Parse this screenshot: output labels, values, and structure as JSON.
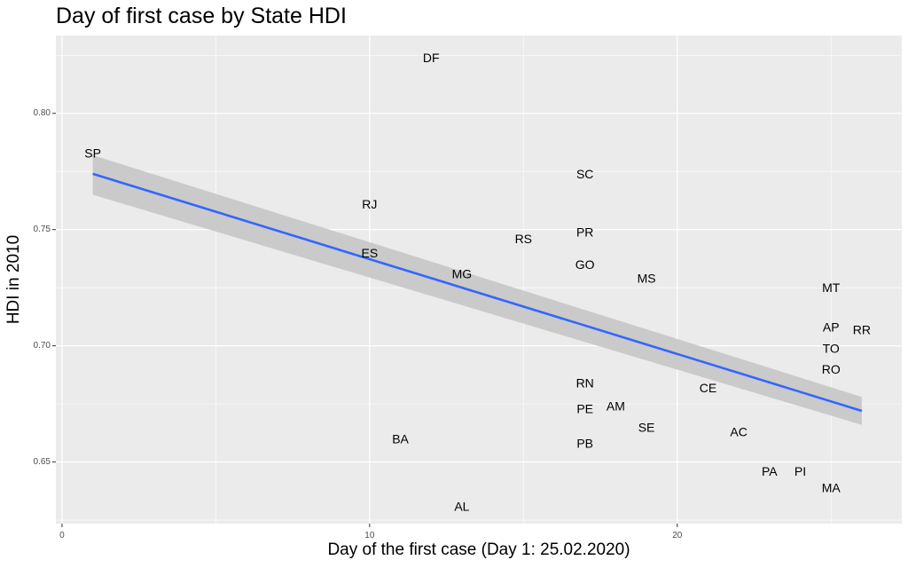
{
  "chart_data": {
    "type": "scatter",
    "title": "Day of first case by State HDI",
    "xlabel": "Day of the first case (Day 1: 25.02.2020)",
    "ylabel": "HDI in 2010",
    "xlim": [
      -0.2,
      27.3
    ],
    "ylim": [
      0.6235,
      0.8335
    ],
    "x_ticks": [
      0,
      10,
      20
    ],
    "y_ticks": [
      0.65,
      0.7,
      0.75,
      0.8
    ],
    "x_tick_labels": [
      "0",
      "10",
      "20"
    ],
    "y_tick_labels": [
      "0.65",
      "0.70",
      "0.75",
      "0.80"
    ],
    "grid": true,
    "points": [
      {
        "label": "SP",
        "x": 1,
        "y": 0.783
      },
      {
        "label": "DF",
        "x": 12,
        "y": 0.824
      },
      {
        "label": "RJ",
        "x": 10,
        "y": 0.761
      },
      {
        "label": "ES",
        "x": 10,
        "y": 0.74
      },
      {
        "label": "RS",
        "x": 15,
        "y": 0.746
      },
      {
        "label": "MG",
        "x": 13,
        "y": 0.731
      },
      {
        "label": "SC",
        "x": 17,
        "y": 0.774
      },
      {
        "label": "PR",
        "x": 17,
        "y": 0.749
      },
      {
        "label": "GO",
        "x": 17,
        "y": 0.735
      },
      {
        "label": "MS",
        "x": 19,
        "y": 0.729
      },
      {
        "label": "MT",
        "x": 25,
        "y": 0.725
      },
      {
        "label": "AP",
        "x": 25,
        "y": 0.708
      },
      {
        "label": "RR",
        "x": 26,
        "y": 0.707
      },
      {
        "label": "TO",
        "x": 25,
        "y": 0.699
      },
      {
        "label": "RO",
        "x": 25,
        "y": 0.69
      },
      {
        "label": "RN",
        "x": 17,
        "y": 0.684
      },
      {
        "label": "CE",
        "x": 21,
        "y": 0.682
      },
      {
        "label": "PE",
        "x": 17,
        "y": 0.673
      },
      {
        "label": "AM",
        "x": 18,
        "y": 0.674
      },
      {
        "label": "SE",
        "x": 19,
        "y": 0.665
      },
      {
        "label": "AC",
        "x": 22,
        "y": 0.663
      },
      {
        "label": "BA",
        "x": 11,
        "y": 0.66
      },
      {
        "label": "PB",
        "x": 17,
        "y": 0.658
      },
      {
        "label": "PA",
        "x": 23,
        "y": 0.646
      },
      {
        "label": "PI",
        "x": 24,
        "y": 0.646
      },
      {
        "label": "MA",
        "x": 25,
        "y": 0.639
      },
      {
        "label": "AL",
        "x": 13,
        "y": 0.631
      }
    ],
    "trend_line": {
      "x": [
        1,
        26
      ],
      "y": [
        0.774,
        0.672
      ],
      "ci_lower": [
        0.765,
        0.666
      ],
      "ci_upper": [
        0.782,
        0.678
      ],
      "color": "#3366FF",
      "ribbon_color": "#C8C8C8"
    },
    "panel_background": "#EBEBEB",
    "grid_color": "#FFFFFF"
  }
}
